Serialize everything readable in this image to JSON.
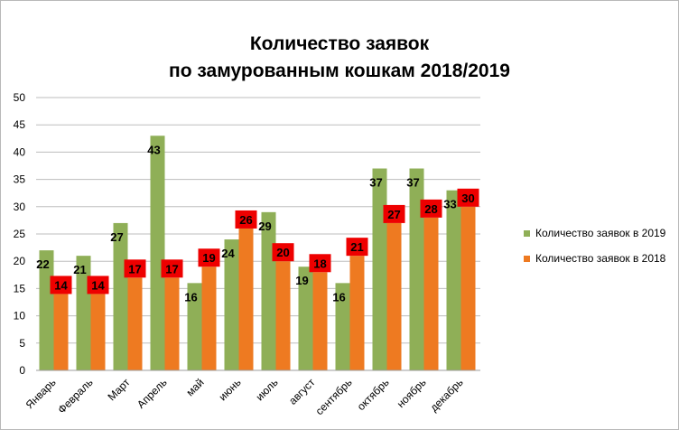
{
  "chart_data": {
    "type": "bar",
    "title_lines": [
      "Количество заявок",
      "по замурованным кошкам 2018/2019"
    ],
    "categories": [
      "Январь",
      "Февраль",
      "Март",
      "Апрель",
      "май",
      "июнь",
      "июль",
      "август",
      "сентябрь",
      "октябрь",
      "ноябрь",
      "декабрь"
    ],
    "series": [
      {
        "name": "Количество заявок в 2019",
        "color": "#8faf57",
        "values": [
          22,
          21,
          27,
          43,
          16,
          24,
          29,
          19,
          16,
          37,
          37,
          33
        ]
      },
      {
        "name": "Количество заявок в 2018",
        "color": "#ee7a21",
        "label_bg": "#ee0000",
        "values": [
          14,
          14,
          17,
          17,
          19,
          26,
          20,
          18,
          21,
          27,
          28,
          30
        ]
      }
    ],
    "ylim": [
      0,
      50
    ],
    "yticks": [
      0,
      5,
      10,
      15,
      20,
      25,
      30,
      35,
      40,
      45,
      50
    ],
    "grid": true,
    "legend_position": "right"
  }
}
